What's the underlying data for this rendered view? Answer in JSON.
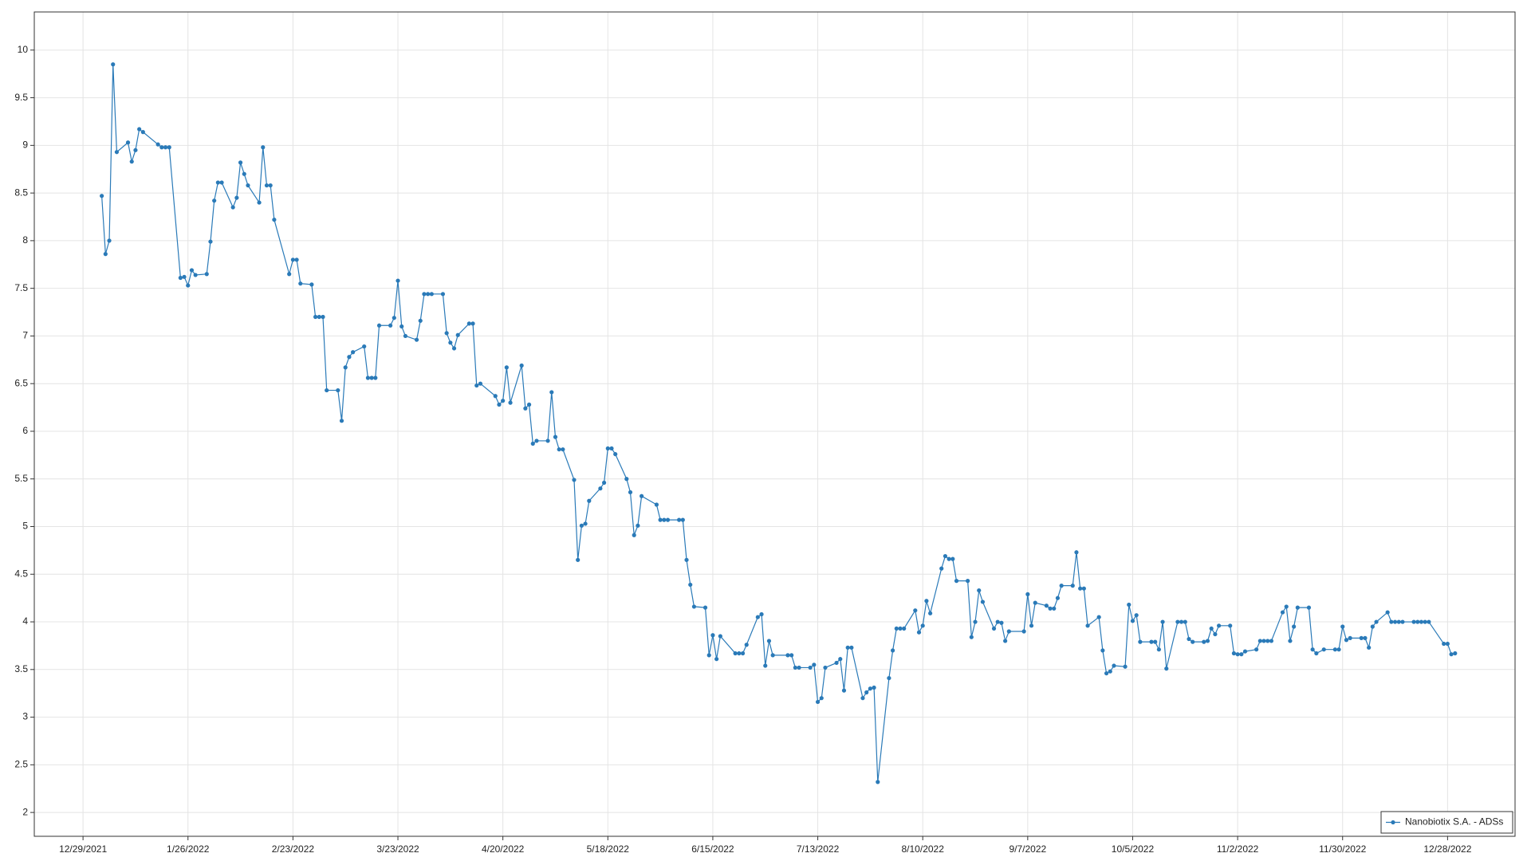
{
  "chart_data": {
    "type": "line",
    "x": [
      "1/3/2022",
      "1/4/2022",
      "1/5/2022",
      "1/6/2022",
      "1/7/2022",
      "1/10/2022",
      "1/11/2022",
      "1/12/2022",
      "1/13/2022",
      "1/14/2022",
      "1/18/2022",
      "1/19/2022",
      "1/20/2022",
      "1/21/2022",
      "1/24/2022",
      "1/25/2022",
      "1/26/2022",
      "1/27/2022",
      "1/28/2022",
      "1/31/2022",
      "2/1/2022",
      "2/2/2022",
      "2/3/2022",
      "2/4/2022",
      "2/7/2022",
      "2/8/2022",
      "2/9/2022",
      "2/10/2022",
      "2/11/2022",
      "2/14/2022",
      "2/15/2022",
      "2/16/2022",
      "2/17/2022",
      "2/18/2022",
      "2/22/2022",
      "2/23/2022",
      "2/24/2022",
      "2/25/2022",
      "2/28/2022",
      "3/1/2022",
      "3/2/2022",
      "3/3/2022",
      "3/4/2022",
      "3/7/2022",
      "3/8/2022",
      "3/9/2022",
      "3/10/2022",
      "3/11/2022",
      "3/14/2022",
      "3/15/2022",
      "3/16/2022",
      "3/17/2022",
      "3/18/2022",
      "3/21/2022",
      "3/22/2022",
      "3/23/2022",
      "3/24/2022",
      "3/25/2022",
      "3/28/2022",
      "3/29/2022",
      "3/30/2022",
      "3/31/2022",
      "4/1/2022",
      "4/4/2022",
      "4/5/2022",
      "4/6/2022",
      "4/7/2022",
      "4/8/2022",
      "4/11/2022",
      "4/12/2022",
      "4/13/2022",
      "4/14/2022",
      "4/18/2022",
      "4/19/2022",
      "4/20/2022",
      "4/21/2022",
      "4/22/2022",
      "4/25/2022",
      "4/26/2022",
      "4/27/2022",
      "4/28/2022",
      "4/29/2022",
      "5/2/2022",
      "5/3/2022",
      "5/4/2022",
      "5/5/2022",
      "5/6/2022",
      "5/9/2022",
      "5/10/2022",
      "5/11/2022",
      "5/12/2022",
      "5/13/2022",
      "5/16/2022",
      "5/17/2022",
      "5/18/2022",
      "5/19/2022",
      "5/20/2022",
      "5/23/2022",
      "5/24/2022",
      "5/25/2022",
      "5/26/2022",
      "5/27/2022",
      "5/31/2022",
      "6/1/2022",
      "6/2/2022",
      "6/3/2022",
      "6/6/2022",
      "6/7/2022",
      "6/8/2022",
      "6/9/2022",
      "6/10/2022",
      "6/13/2022",
      "6/14/2022",
      "6/15/2022",
      "6/16/2022",
      "6/17/2022",
      "6/21/2022",
      "6/22/2022",
      "6/23/2022",
      "6/24/2022",
      "6/27/2022",
      "6/28/2022",
      "6/29/2022",
      "6/30/2022",
      "7/1/2022",
      "7/5/2022",
      "7/6/2022",
      "7/7/2022",
      "7/8/2022",
      "7/11/2022",
      "7/12/2022",
      "7/13/2022",
      "7/14/2022",
      "7/15/2022",
      "7/18/2022",
      "7/19/2022",
      "7/20/2022",
      "7/21/2022",
      "7/22/2022",
      "7/25/2022",
      "7/26/2022",
      "7/27/2022",
      "7/28/2022",
      "7/29/2022",
      "8/1/2022",
      "8/2/2022",
      "8/3/2022",
      "8/4/2022",
      "8/5/2022",
      "8/8/2022",
      "8/9/2022",
      "8/10/2022",
      "8/11/2022",
      "8/12/2022",
      "8/15/2022",
      "8/16/2022",
      "8/17/2022",
      "8/18/2022",
      "8/19/2022",
      "8/22/2022",
      "8/23/2022",
      "8/24/2022",
      "8/25/2022",
      "8/26/2022",
      "8/29/2022",
      "8/30/2022",
      "8/31/2022",
      "9/1/2022",
      "9/2/2022",
      "9/6/2022",
      "9/7/2022",
      "9/8/2022",
      "9/9/2022",
      "9/12/2022",
      "9/13/2022",
      "9/14/2022",
      "9/15/2022",
      "9/16/2022",
      "9/19/2022",
      "9/20/2022",
      "9/21/2022",
      "9/22/2022",
      "9/23/2022",
      "9/26/2022",
      "9/27/2022",
      "9/28/2022",
      "9/29/2022",
      "9/30/2022",
      "10/3/2022",
      "10/4/2022",
      "10/5/2022",
      "10/6/2022",
      "10/7/2022",
      "10/10/2022",
      "10/11/2022",
      "10/12/2022",
      "10/13/2022",
      "10/14/2022",
      "10/17/2022",
      "10/18/2022",
      "10/19/2022",
      "10/20/2022",
      "10/21/2022",
      "10/24/2022",
      "10/25/2022",
      "10/26/2022",
      "10/27/2022",
      "10/28/2022",
      "10/31/2022",
      "11/1/2022",
      "11/2/2022",
      "11/3/2022",
      "11/4/2022",
      "11/7/2022",
      "11/8/2022",
      "11/9/2022",
      "11/10/2022",
      "11/11/2022",
      "11/14/2022",
      "11/15/2022",
      "11/16/2022",
      "11/17/2022",
      "11/18/2022",
      "11/21/2022",
      "11/22/2022",
      "11/23/2022",
      "11/25/2022",
      "11/28/2022",
      "11/29/2022",
      "11/30/2022",
      "12/1/2022",
      "12/2/2022",
      "12/5/2022",
      "12/6/2022",
      "12/7/2022",
      "12/8/2022",
      "12/9/2022",
      "12/12/2022",
      "12/13/2022",
      "12/14/2022",
      "12/15/2022",
      "12/16/2022",
      "12/19/2022",
      "12/20/2022",
      "12/21/2022",
      "12/22/2022",
      "12/23/2022",
      "12/27/2022",
      "12/28/2022",
      "12/29/2022",
      "12/30/2022"
    ],
    "series": [
      {
        "name": "Nanobiotix S.A. - ADSs",
        "color": "#2a7ab8",
        "values": [
          8.47,
          7.86,
          8.0,
          9.85,
          8.93,
          9.03,
          8.83,
          8.95,
          9.17,
          9.14,
          9.01,
          8.98,
          8.98,
          8.98,
          7.61,
          7.62,
          7.53,
          7.69,
          7.64,
          7.65,
          7.99,
          8.42,
          8.61,
          8.61,
          8.35,
          8.45,
          8.82,
          8.7,
          8.58,
          8.4,
          8.98,
          8.58,
          8.58,
          8.22,
          7.65,
          7.8,
          7.8,
          7.55,
          7.54,
          7.2,
          7.2,
          7.2,
          6.43,
          6.43,
          6.11,
          6.67,
          6.78,
          6.83,
          6.89,
          6.56,
          6.56,
          6.56,
          7.11,
          7.11,
          7.19,
          7.58,
          7.1,
          7.0,
          6.96,
          7.16,
          7.44,
          7.44,
          7.44,
          7.44,
          7.03,
          6.93,
          6.87,
          7.01,
          7.13,
          7.13,
          6.48,
          6.5,
          6.37,
          6.28,
          6.32,
          6.67,
          6.3,
          6.69,
          6.24,
          6.28,
          5.87,
          5.9,
          5.9,
          6.41,
          5.94,
          5.81,
          5.81,
          5.49,
          4.65,
          5.01,
          5.03,
          5.27,
          5.4,
          5.46,
          5.82,
          5.82,
          5.76,
          5.5,
          5.36,
          4.91,
          5.01,
          5.32,
          5.23,
          5.07,
          5.07,
          5.07,
          5.07,
          5.07,
          4.65,
          4.39,
          4.16,
          4.15,
          3.65,
          3.86,
          3.61,
          3.85,
          3.67,
          3.67,
          3.67,
          3.76,
          4.05,
          4.08,
          3.54,
          3.8,
          3.65,
          3.65,
          3.65,
          3.52,
          3.52,
          3.52,
          3.55,
          3.16,
          3.2,
          3.52,
          3.57,
          3.61,
          3.28,
          3.73,
          3.73,
          3.2,
          3.26,
          3.3,
          3.31,
          2.32,
          3.41,
          3.7,
          3.93,
          3.93,
          3.93,
          4.12,
          3.89,
          3.96,
          4.22,
          4.09,
          4.56,
          4.69,
          4.66,
          4.66,
          4.43,
          4.43,
          3.84,
          4.0,
          4.33,
          4.21,
          3.93,
          4.0,
          3.99,
          3.8,
          3.9,
          3.9,
          4.29,
          3.96,
          4.2,
          4.17,
          4.14,
          4.14,
          4.25,
          4.38,
          4.38,
          4.73,
          4.35,
          4.35,
          3.96,
          4.05,
          3.7,
          3.46,
          3.48,
          3.54,
          3.53,
          4.18,
          4.01,
          4.07,
          3.79,
          3.79,
          3.79,
          3.71,
          4.0,
          3.51,
          4.0,
          4.0,
          4.0,
          3.82,
          3.79,
          3.79,
          3.8,
          3.93,
          3.87,
          3.96,
          3.96,
          3.67,
          3.66,
          3.66,
          3.69,
          3.71,
          3.8,
          3.8,
          3.8,
          3.8,
          4.1,
          4.16,
          3.8,
          3.95,
          4.15,
          4.15,
          3.71,
          3.67,
          3.71,
          3.71,
          3.71,
          3.95,
          3.81,
          3.83,
          3.83,
          3.83,
          3.73,
          3.95,
          4.0,
          4.1,
          4.0,
          4.0,
          4.0,
          4.0,
          4.0,
          4.0,
          4.0,
          4.0,
          4.0,
          3.77,
          3.77,
          3.66,
          3.67
        ]
      }
    ],
    "xlim": [
      "12/16/2021",
      "1/15/2023"
    ],
    "xticks": [
      "12/29/2021",
      "1/26/2022",
      "2/23/2022",
      "3/23/2022",
      "4/20/2022",
      "5/18/2022",
      "6/15/2022",
      "7/13/2022",
      "8/10/2022",
      "9/7/2022",
      "10/5/2022",
      "11/2/2022",
      "11/30/2022",
      "12/28/2022"
    ],
    "ylim": [
      1.75,
      10.4
    ],
    "yticks": [
      2,
      2.5,
      3,
      3.5,
      4,
      4.5,
      5,
      5.5,
      6,
      6.5,
      7,
      7.5,
      8,
      8.5,
      9,
      9.5,
      10
    ],
    "grid": true,
    "legend": "lower right"
  }
}
